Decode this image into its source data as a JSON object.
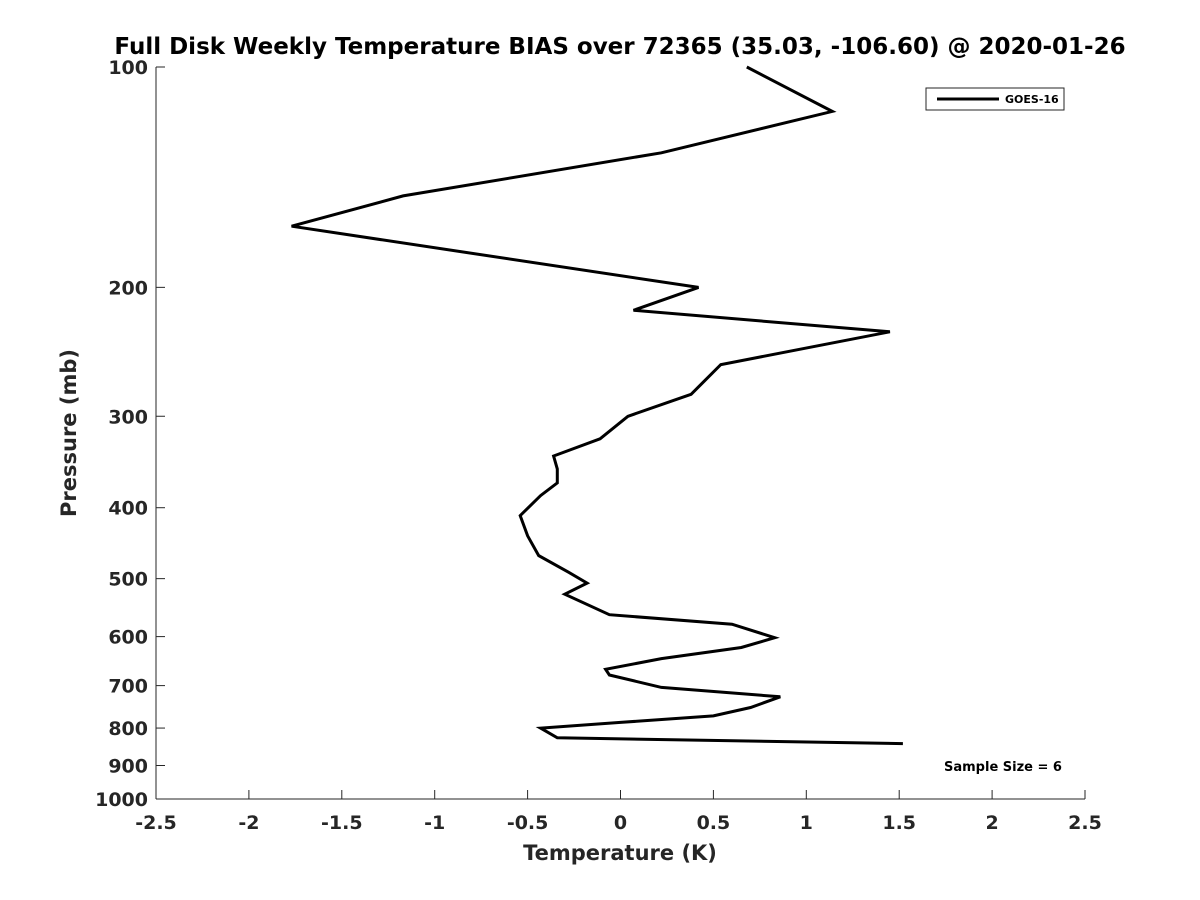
{
  "chart_data": {
    "type": "line",
    "title": "Full Disk Weekly Temperature BIAS over 72365 (35.03, -106.60) @ 2020-01-26",
    "xlabel": "Temperature (K)",
    "ylabel": "Pressure (mb)",
    "xlim": [
      -2.5,
      2.5
    ],
    "ylim": [
      1000,
      100
    ],
    "yscale": "log",
    "grid": false,
    "legend_position": "top-right",
    "x_ticks": [
      -2.5,
      -2,
      -1.5,
      -1,
      -0.5,
      0,
      0.5,
      1,
      1.5,
      2,
      2.5
    ],
    "x_tick_labels": [
      "-2.5",
      "-2",
      "-1.5",
      "-1",
      "-0.5",
      "0",
      "0.5",
      "1",
      "1.5",
      "2",
      "2.5"
    ],
    "y_ticks": [
      100,
      200,
      300,
      400,
      500,
      600,
      700,
      800,
      900,
      1000
    ],
    "y_tick_labels": [
      "100",
      "200",
      "300",
      "400",
      "500",
      "600",
      "700",
      "800",
      "900",
      "1000"
    ],
    "series": [
      {
        "name": "GOES-16",
        "color": "#000000",
        "x": [
          0.68,
          1.14,
          0.22,
          -1.17,
          -1.77,
          0.42,
          0.07,
          1.45,
          0.54,
          0.38,
          0.04,
          -0.11,
          -0.36,
          -0.34,
          -0.34,
          -0.43,
          -0.54,
          -0.5,
          -0.44,
          -0.28,
          -0.18,
          -0.3,
          -0.06,
          0.6,
          0.83,
          0.65,
          0.22,
          -0.08,
          -0.06,
          0.22,
          0.86,
          0.7,
          0.5,
          0.0,
          -0.43,
          -0.34,
          1.52
        ],
        "y": [
          100,
          115,
          131,
          150,
          165,
          200,
          215,
          230,
          255,
          280,
          300,
          322,
          340,
          354,
          370,
          385,
          410,
          437,
          465,
          490,
          507,
          525,
          560,
          577,
          602,
          621,
          643,
          665,
          677,
          704,
          725,
          750,
          770,
          786,
          800,
          825,
          840
        ]
      }
    ],
    "annotations": [
      "Sample Size = 6"
    ]
  }
}
